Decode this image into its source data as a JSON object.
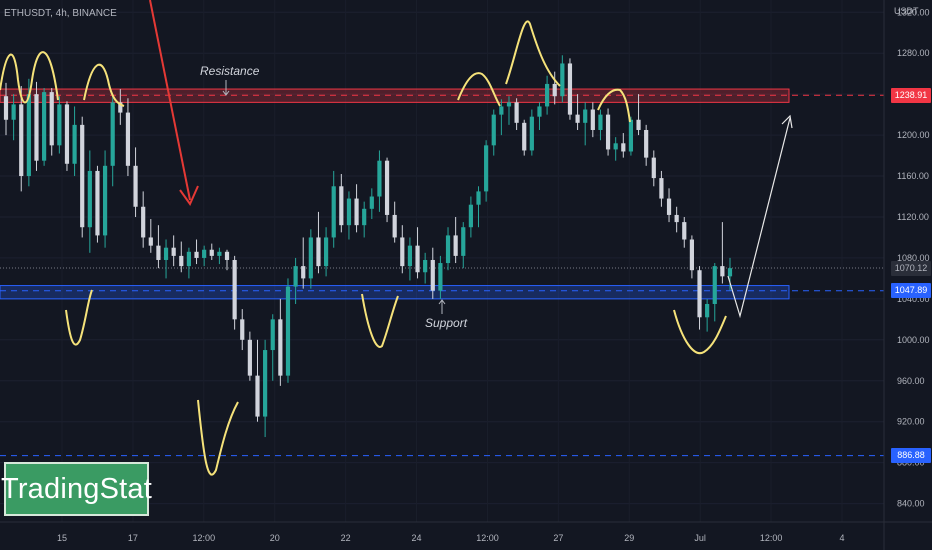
{
  "chart_data": {
    "type": "candlestick",
    "symbol_label": "ETHUSDT, 4h, BINANCE",
    "y_axis": {
      "unit": "USDT",
      "ticks": [
        1320,
        1280,
        1240,
        1200,
        1160,
        1120,
        1080,
        1040,
        1000,
        960,
        920,
        880,
        840
      ],
      "ylim": [
        822,
        1332
      ]
    },
    "x_axis": {
      "ticks": [
        "15",
        "17",
        "12:00",
        "20",
        "22",
        "24",
        "12:00",
        "27",
        "29",
        "Jul",
        "12:00",
        "4"
      ]
    },
    "price_labels": {
      "resistance_level": 1238.91,
      "last_price": 1070.12,
      "support_level": 1047.89,
      "low_level": 886.88
    },
    "zones": [
      {
        "name": "Resistance",
        "low": 1232,
        "high": 1245,
        "color": "#f23645"
      },
      {
        "name": "Support",
        "low": 1040,
        "high": 1053,
        "color": "#2962ff"
      }
    ],
    "annotations": [
      "Resistance",
      "Support"
    ],
    "colors": {
      "up": "#26a69a",
      "down": "#d1d4dc",
      "resistance_line": "#f23645",
      "support_line": "#2962ff",
      "handdrawn": "#f5e27a",
      "arrow_red": "#e53935",
      "projection": "#ffffff"
    },
    "candles": [
      [
        1238,
        1251,
        1200,
        1215
      ],
      [
        1215,
        1240,
        1195,
        1230
      ],
      [
        1230,
        1248,
        1145,
        1160
      ],
      [
        1160,
        1255,
        1150,
        1240
      ],
      [
        1240,
        1252,
        1165,
        1175
      ],
      [
        1175,
        1246,
        1170,
        1242
      ],
      [
        1242,
        1246,
        1180,
        1190
      ],
      [
        1190,
        1238,
        1182,
        1230
      ],
      [
        1230,
        1233,
        1165,
        1172
      ],
      [
        1172,
        1228,
        1160,
        1210
      ],
      [
        1210,
        1218,
        1100,
        1110
      ],
      [
        1110,
        1185,
        1085,
        1165
      ],
      [
        1165,
        1170,
        1095,
        1102
      ],
      [
        1102,
        1185,
        1090,
        1170
      ],
      [
        1170,
        1240,
        1150,
        1232
      ],
      [
        1232,
        1245,
        1210,
        1222
      ],
      [
        1222,
        1236,
        1160,
        1170
      ],
      [
        1170,
        1188,
        1120,
        1130
      ],
      [
        1130,
        1145,
        1090,
        1100
      ],
      [
        1100,
        1118,
        1085,
        1092
      ],
      [
        1092,
        1112,
        1070,
        1078
      ],
      [
        1078,
        1098,
        1060,
        1090
      ],
      [
        1090,
        1102,
        1072,
        1082
      ],
      [
        1082,
        1096,
        1066,
        1072
      ],
      [
        1072,
        1090,
        1060,
        1086
      ],
      [
        1086,
        1098,
        1074,
        1080
      ],
      [
        1080,
        1092,
        1072,
        1088
      ],
      [
        1088,
        1094,
        1078,
        1082
      ],
      [
        1082,
        1090,
        1074,
        1086
      ],
      [
        1086,
        1088,
        1068,
        1078
      ],
      [
        1078,
        1082,
        1010,
        1020
      ],
      [
        1020,
        1030,
        990,
        1000
      ],
      [
        1000,
        1008,
        960,
        965
      ],
      [
        965,
        1000,
        920,
        925
      ],
      [
        925,
        1000,
        905,
        990
      ],
      [
        990,
        1025,
        960,
        1020
      ],
      [
        1020,
        1040,
        955,
        965
      ],
      [
        965,
        1060,
        958,
        1052
      ],
      [
        1052,
        1080,
        1035,
        1072
      ],
      [
        1072,
        1100,
        1050,
        1060
      ],
      [
        1060,
        1108,
        1050,
        1100
      ],
      [
        1100,
        1125,
        1065,
        1072
      ],
      [
        1072,
        1110,
        1062,
        1100
      ],
      [
        1100,
        1165,
        1090,
        1150
      ],
      [
        1150,
        1162,
        1105,
        1112
      ],
      [
        1112,
        1145,
        1098,
        1138
      ],
      [
        1138,
        1152,
        1105,
        1112
      ],
      [
        1112,
        1135,
        1100,
        1128
      ],
      [
        1128,
        1148,
        1118,
        1140
      ],
      [
        1140,
        1185,
        1125,
        1175
      ],
      [
        1175,
        1178,
        1115,
        1122
      ],
      [
        1122,
        1135,
        1095,
        1100
      ],
      [
        1100,
        1112,
        1065,
        1072
      ],
      [
        1072,
        1100,
        1058,
        1092
      ],
      [
        1092,
        1110,
        1060,
        1066
      ],
      [
        1066,
        1085,
        1055,
        1078
      ],
      [
        1078,
        1090,
        1040,
        1048
      ],
      [
        1048,
        1082,
        1040,
        1075
      ],
      [
        1075,
        1110,
        1068,
        1102
      ],
      [
        1102,
        1120,
        1075,
        1082
      ],
      [
        1082,
        1115,
        1070,
        1110
      ],
      [
        1110,
        1140,
        1100,
        1132
      ],
      [
        1132,
        1150,
        1110,
        1145
      ],
      [
        1145,
        1195,
        1135,
        1190
      ],
      [
        1190,
        1225,
        1180,
        1220
      ],
      [
        1220,
        1235,
        1200,
        1228
      ],
      [
        1228,
        1238,
        1210,
        1232
      ],
      [
        1232,
        1236,
        1205,
        1212
      ],
      [
        1212,
        1215,
        1180,
        1185
      ],
      [
        1185,
        1225,
        1180,
        1218
      ],
      [
        1218,
        1232,
        1205,
        1228
      ],
      [
        1228,
        1258,
        1220,
        1250
      ],
      [
        1250,
        1262,
        1230,
        1238
      ],
      [
        1238,
        1278,
        1232,
        1270
      ],
      [
        1270,
        1275,
        1215,
        1220
      ],
      [
        1220,
        1240,
        1205,
        1212
      ],
      [
        1212,
        1232,
        1190,
        1225
      ],
      [
        1225,
        1232,
        1198,
        1205
      ],
      [
        1205,
        1225,
        1195,
        1220
      ],
      [
        1220,
        1226,
        1180,
        1186
      ],
      [
        1186,
        1198,
        1175,
        1192
      ],
      [
        1192,
        1202,
        1178,
        1184
      ],
      [
        1184,
        1218,
        1180,
        1215
      ],
      [
        1215,
        1240,
        1200,
        1205
      ],
      [
        1205,
        1210,
        1170,
        1178
      ],
      [
        1178,
        1185,
        1150,
        1158
      ],
      [
        1158,
        1165,
        1130,
        1138
      ],
      [
        1138,
        1148,
        1115,
        1122
      ],
      [
        1122,
        1130,
        1105,
        1115
      ],
      [
        1115,
        1120,
        1090,
        1098
      ],
      [
        1098,
        1102,
        1060,
        1068
      ],
      [
        1068,
        1072,
        1010,
        1022
      ],
      [
        1022,
        1040,
        1008,
        1035
      ],
      [
        1035,
        1075,
        1018,
        1072
      ],
      [
        1072,
        1115,
        1055,
        1062
      ],
      [
        1062,
        1080,
        1048,
        1070
      ]
    ]
  }
}
